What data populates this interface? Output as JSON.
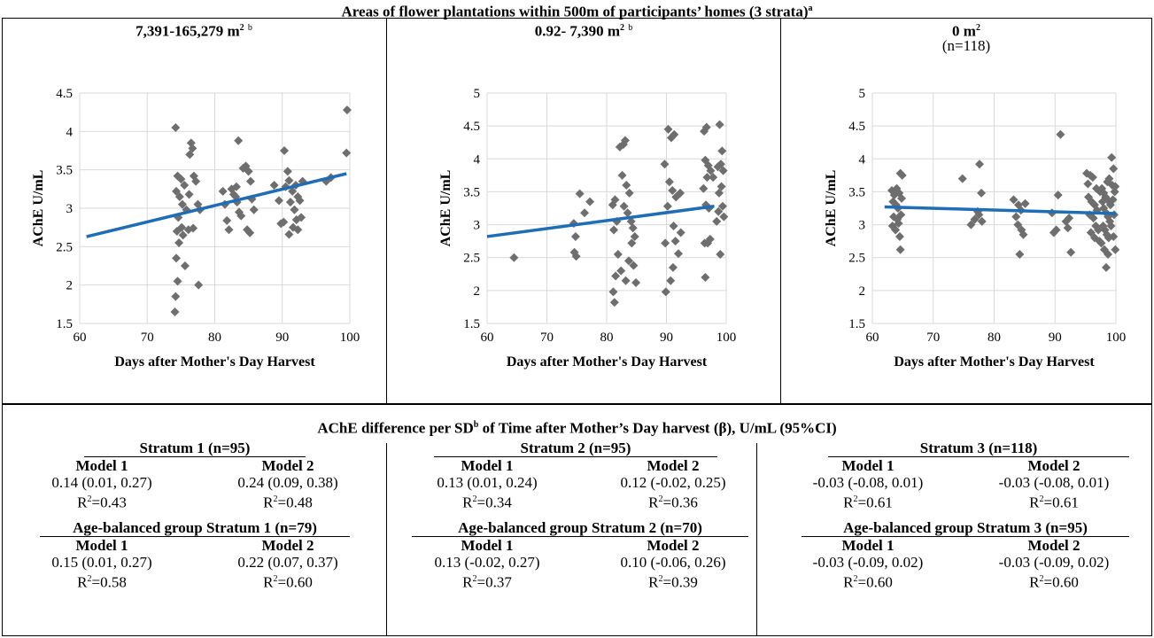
{
  "main_title": "Areas of flower plantations within 500m of participants’ homes (3 strata)",
  "main_title_sup": "a",
  "panels": [
    {
      "title": "7,391-165,279 m",
      "title_sup": "2",
      "title_note": "b",
      "subtitle": ""
    },
    {
      "title": "0.92- 7,390 m",
      "title_sup": "2",
      "title_note": "b",
      "subtitle": ""
    },
    {
      "title": "0 m",
      "title_sup": "2",
      "title_note": "",
      "subtitle": "(n=118)"
    }
  ],
  "chart_data": [
    {
      "type": "scatter",
      "xlabel": "Days after Mother's Day Harvest",
      "ylabel": "AChE U/mL",
      "xlim": [
        60,
        100
      ],
      "ylim": [
        1.5,
        4.5
      ],
      "xticks": [
        60,
        70,
        80,
        90,
        100
      ],
      "yticks": [
        1.5,
        2,
        2.5,
        3,
        3.5,
        4,
        4.5
      ],
      "ytick_labels": [
        "1.5",
        "2",
        "2.5",
        "3",
        "3.5",
        "4",
        "4.5"
      ],
      "grid": true,
      "marker_color": "#6e6e6e",
      "trend_color": "#1f6db5",
      "trend": [
        [
          61,
          2.63
        ],
        [
          99.5,
          3.45
        ]
      ],
      "points": [
        [
          74.2,
          4.05
        ],
        [
          74.5,
          3.42
        ],
        [
          75,
          3.38
        ],
        [
          75.5,
          3.3
        ],
        [
          74.3,
          3.22
        ],
        [
          74.8,
          3.15
        ],
        [
          75.2,
          3.05
        ],
        [
          75.8,
          2.98
        ],
        [
          74.6,
          2.88
        ],
        [
          75.1,
          2.75
        ],
        [
          74.4,
          2.7
        ],
        [
          75.3,
          2.65
        ],
        [
          76.1,
          2.72
        ],
        [
          74.7,
          2.55
        ],
        [
          74.3,
          2.35
        ],
        [
          75.6,
          2.25
        ],
        [
          74.5,
          2.05
        ],
        [
          74.2,
          1.85
        ],
        [
          74.1,
          1.65
        ],
        [
          76.5,
          3.85
        ],
        [
          76.7,
          3.78
        ],
        [
          76.3,
          3.7
        ],
        [
          76.9,
          3.42
        ],
        [
          77.2,
          3.35
        ],
        [
          77.5,
          3.05
        ],
        [
          77.8,
          2.98
        ],
        [
          76.8,
          2.74
        ],
        [
          77.6,
          2.0
        ],
        [
          76.2,
          3.18
        ],
        [
          81.2,
          3.22
        ],
        [
          81.5,
          3.05
        ],
        [
          81.8,
          2.84
        ],
        [
          82.1,
          2.72
        ],
        [
          82.5,
          3.25
        ],
        [
          83.1,
          3.15
        ],
        [
          83.3,
          3.08
        ],
        [
          83.6,
          2.95
        ],
        [
          83.9,
          2.9
        ],
        [
          83.5,
          3.88
        ],
        [
          84.2,
          3.52
        ],
        [
          84.6,
          3.55
        ],
        [
          85,
          3.48
        ],
        [
          85.3,
          3.35
        ],
        [
          85.5,
          3.12
        ],
        [
          85.8,
          2.98
        ],
        [
          84.8,
          2.72
        ],
        [
          85.2,
          2.68
        ],
        [
          83.2,
          3.28
        ],
        [
          82.8,
          3.18
        ],
        [
          90.3,
          3.75
        ],
        [
          90.8,
          3.48
        ],
        [
          91,
          3.36
        ],
        [
          90.5,
          3.28
        ],
        [
          91.5,
          3.22
        ],
        [
          92,
          3.3
        ],
        [
          92.3,
          3.15
        ],
        [
          92.6,
          3.1
        ],
        [
          91.2,
          3.08
        ],
        [
          91.8,
          2.98
        ],
        [
          92.1,
          2.85
        ],
        [
          92.8,
          2.88
        ],
        [
          91.6,
          2.75
        ],
        [
          92.3,
          2.72
        ],
        [
          89.8,
          2.8
        ],
        [
          90.2,
          2.82
        ],
        [
          91,
          2.66
        ],
        [
          93,
          3.35
        ],
        [
          96.5,
          3.35
        ],
        [
          97.2,
          3.4
        ],
        [
          99.6,
          4.28
        ],
        [
          99.5,
          3.72
        ],
        [
          88.8,
          3.3
        ],
        [
          89.5,
          3.1
        ]
      ]
    },
    {
      "type": "scatter",
      "xlabel": "Days after Mother's Day Harvest",
      "ylabel": "AChE U/mL",
      "xlim": [
        60,
        100
      ],
      "ylim": [
        1.5,
        5
      ],
      "xticks": [
        60,
        70,
        80,
        90,
        100
      ],
      "yticks": [
        1.5,
        2,
        2.5,
        3,
        3.5,
        4,
        4.5,
        5
      ],
      "ytick_labels": [
        "1.5",
        "2",
        "2.5",
        "3",
        "3.5",
        "4",
        "4.5",
        "5"
      ],
      "grid": true,
      "marker_color": "#6e6e6e",
      "trend_color": "#1f6db5",
      "trend": [
        [
          60,
          2.82
        ],
        [
          98,
          3.28
        ]
      ],
      "points": [
        [
          64.5,
          2.5
        ],
        [
          74.5,
          3.02
        ],
        [
          74.8,
          2.82
        ],
        [
          74.6,
          2.58
        ],
        [
          74.9,
          2.52
        ],
        [
          75.5,
          3.47
        ],
        [
          76.3,
          3.18
        ],
        [
          77.2,
          3.35
        ],
        [
          81,
          3.3
        ],
        [
          81.4,
          3.38
        ],
        [
          81.7,
          3.05
        ],
        [
          81.2,
          2.92
        ],
        [
          81.9,
          2.55
        ],
        [
          81.5,
          2.22
        ],
        [
          81.1,
          1.98
        ],
        [
          81.3,
          1.82
        ],
        [
          82.2,
          4.18
        ],
        [
          82.8,
          4.22
        ],
        [
          83.1,
          4.28
        ],
        [
          82.6,
          3.75
        ],
        [
          83.3,
          3.6
        ],
        [
          83.8,
          3.48
        ],
        [
          82.9,
          3.28
        ],
        [
          83.5,
          3.18
        ],
        [
          84.1,
          3.05
        ],
        [
          84.4,
          2.95
        ],
        [
          84.7,
          2.82
        ],
        [
          84.2,
          2.72
        ],
        [
          83.7,
          2.45
        ],
        [
          84.5,
          2.38
        ],
        [
          84.9,
          2.12
        ],
        [
          83.2,
          2.15
        ],
        [
          82.4,
          2.3
        ],
        [
          89.7,
          3.92
        ],
        [
          90.3,
          4.45
        ],
        [
          90.8,
          4.32
        ],
        [
          91.3,
          4.37
        ],
        [
          90.5,
          3.65
        ],
        [
          91,
          3.52
        ],
        [
          90.2,
          3.28
        ],
        [
          91.6,
          3.42
        ],
        [
          92.3,
          3.48
        ],
        [
          91.2,
          2.98
        ],
        [
          89.8,
          2.72
        ],
        [
          91.5,
          2.75
        ],
        [
          92,
          2.56
        ],
        [
          91.1,
          2.35
        ],
        [
          90.7,
          2.15
        ],
        [
          89.9,
          1.98
        ],
        [
          92.4,
          2.88
        ],
        [
          96.3,
          4.42
        ],
        [
          96.7,
          4.48
        ],
        [
          96.5,
          3.98
        ],
        [
          97,
          3.9
        ],
        [
          97.4,
          3.82
        ],
        [
          96.8,
          3.72
        ],
        [
          96.2,
          3.55
        ],
        [
          97.8,
          3.72
        ],
        [
          96.6,
          3.3
        ],
        [
          97.1,
          3.25
        ],
        [
          96.4,
          2.72
        ],
        [
          97.3,
          2.78
        ],
        [
          96.9,
          2.72
        ],
        [
          96.5,
          2.2
        ],
        [
          98.9,
          4.52
        ],
        [
          99.3,
          4.12
        ],
        [
          99.1,
          3.92
        ],
        [
          98.6,
          3.88
        ],
        [
          99.5,
          3.82
        ],
        [
          99.2,
          3.58
        ],
        [
          98.8,
          3.48
        ],
        [
          99.4,
          3.28
        ],
        [
          98.7,
          3.2
        ],
        [
          99.6,
          3.12
        ],
        [
          98.4,
          3.05
        ],
        [
          99,
          2.55
        ]
      ]
    },
    {
      "type": "scatter",
      "xlabel": "Days after Mother's Day Harvest",
      "ylabel": "AChE U/mL",
      "xlim": [
        60,
        100
      ],
      "ylim": [
        1.5,
        5
      ],
      "xticks": [
        60,
        70,
        80,
        90,
        100
      ],
      "yticks": [
        1.5,
        2,
        2.5,
        3,
        3.5,
        4,
        4.5,
        5
      ],
      "ytick_labels": [
        "1.5",
        "2",
        "2.5",
        "3",
        "3.5",
        "4",
        "4.5",
        "5"
      ],
      "grid": true,
      "marker_color": "#6e6e6e",
      "trend_color": "#1f6db5",
      "trend": [
        [
          62,
          3.27
        ],
        [
          100,
          3.17
        ]
      ],
      "points": [
        [
          63.2,
          3.52
        ],
        [
          63.6,
          3.45
        ],
        [
          64,
          3.55
        ],
        [
          64.4,
          3.48
        ],
        [
          64.6,
          3.78
        ],
        [
          64.9,
          3.75
        ],
        [
          63.4,
          3.35
        ],
        [
          63.9,
          3.3
        ],
        [
          64.2,
          3.25
        ],
        [
          64.8,
          3.4
        ],
        [
          63.5,
          3.12
        ],
        [
          64.1,
          3.08
        ],
        [
          64.7,
          3.15
        ],
        [
          63.3,
          2.98
        ],
        [
          63.8,
          2.92
        ],
        [
          64.3,
          3.02
        ],
        [
          64.5,
          2.82
        ],
        [
          64.6,
          2.62
        ],
        [
          74.8,
          3.7
        ],
        [
          76.2,
          3.0
        ],
        [
          76.8,
          3.08
        ],
        [
          77.3,
          3.2
        ],
        [
          77.6,
          3.92
        ],
        [
          77.9,
          3.48
        ],
        [
          77.5,
          3.15
        ],
        [
          78,
          3.05
        ],
        [
          83.2,
          3.38
        ],
        [
          83.6,
          3.12
        ],
        [
          84,
          3.3
        ],
        [
          84.4,
          3.22
        ],
        [
          83.9,
          3.0
        ],
        [
          84.5,
          2.92
        ],
        [
          84.8,
          2.85
        ],
        [
          84.2,
          2.55
        ],
        [
          85.1,
          3.32
        ],
        [
          89.5,
          3.18
        ],
        [
          89.8,
          2.88
        ],
        [
          90.2,
          2.92
        ],
        [
          90.5,
          3.45
        ],
        [
          90.9,
          4.37
        ],
        [
          91.8,
          3.05
        ],
        [
          92.3,
          3.1
        ],
        [
          92.6,
          2.58
        ],
        [
          92.1,
          2.95
        ],
        [
          95.2,
          3.78
        ],
        [
          95.8,
          3.75
        ],
        [
          96.2,
          3.72
        ],
        [
          95.5,
          3.42
        ],
        [
          96,
          3.35
        ],
        [
          96.5,
          3.3
        ],
        [
          96.9,
          3.22
        ],
        [
          95.7,
          3.15
        ],
        [
          96.3,
          3.1
        ],
        [
          96.7,
          2.98
        ],
        [
          97.1,
          2.92
        ],
        [
          95.9,
          2.88
        ],
        [
          96.5,
          2.8
        ],
        [
          97.3,
          2.75
        ],
        [
          97.7,
          3.55
        ],
        [
          98,
          3.48
        ],
        [
          98.3,
          3.42
        ],
        [
          98.6,
          3.38
        ],
        [
          98,
          3.25
        ],
        [
          98.4,
          3.18
        ],
        [
          98.7,
          3.12
        ],
        [
          99,
          3.05
        ],
        [
          97.9,
          2.98
        ],
        [
          98.2,
          2.92
        ],
        [
          98.5,
          2.85
        ],
        [
          98.8,
          2.8
        ],
        [
          97.6,
          2.72
        ],
        [
          98.1,
          2.62
        ],
        [
          98.7,
          2.55
        ],
        [
          98.4,
          2.35
        ],
        [
          99.1,
          3.3
        ],
        [
          99.3,
          4.02
        ],
        [
          99.6,
          3.85
        ],
        [
          99.4,
          3.6
        ],
        [
          99.8,
          3.5
        ],
        [
          99.5,
          3.38
        ],
        [
          99.7,
          3.15
        ],
        [
          99.2,
          2.98
        ],
        [
          99.6,
          2.82
        ],
        [
          99.9,
          2.62
        ],
        [
          97.4,
          3.5
        ],
        [
          97.8,
          3.35
        ],
        [
          96.8,
          3.55
        ],
        [
          95.4,
          3.62
        ],
        [
          98.9,
          3.7
        ],
        [
          98.6,
          3.65
        ],
        [
          99.9,
          3.58
        ]
      ]
    }
  ],
  "bottom_title": "AChE difference per SD",
  "bottom_title_sup": "b",
  "bottom_title_rest": " of Time after Mother’s Day harvest (β), U/mL (95%CI)",
  "r2_prefix": "R",
  "r2_sup": "2",
  "strata": [
    {
      "title": "Stratum 1 (n=95)",
      "model1": "Model 1",
      "model2": "Model 2",
      "m1_ci": "0.14 (0.01, 0.27)",
      "m2_ci": "0.24 (0.09, 0.38)",
      "m1_r2": "=0.43",
      "m2_r2": "=0.48",
      "age_title": "Age-balanced group Stratum 1 (n=79)",
      "a1_ci": "0.15 (0.01, 0.27)",
      "a2_ci": "0.22 (0.07, 0.37)",
      "a1_r2": "=0.58",
      "a2_r2": "=0.60"
    },
    {
      "title": "Stratum 2 (n=95)",
      "model1": "Model 1",
      "model2": "Model 2",
      "m1_ci": "0.13 (0.01, 0.24)",
      "m2_ci": "0.12 (-0.02, 0.25)",
      "m1_r2": "=0.34",
      "m2_r2": "=0.36",
      "age_title": "Age-balanced group Stratum 2 (n=70)",
      "a1_ci": "0.13 (-0.02, 0.27)",
      "a2_ci": "0.10 (-0.06, 0.26)",
      "a1_r2": "=0.37",
      "a2_r2": "=0.39"
    },
    {
      "title": "Stratum 3 (n=118)",
      "model1": "Model 1",
      "model2": "Model 2",
      "m1_ci": "-0.03 (-0.08, 0.01)",
      "m2_ci": "-0.03 (-0.08, 0.01)",
      "m1_r2": "=0.61",
      "m2_r2": "=0.61",
      "age_title": "Age-balanced group Stratum 3 (n=95)",
      "a1_ci": "-0.03 (-0.09, 0.02)",
      "a2_ci": "-0.03 (-0.09, 0.02)",
      "a1_r2": "=0.60",
      "a2_r2": "=0.60"
    }
  ]
}
